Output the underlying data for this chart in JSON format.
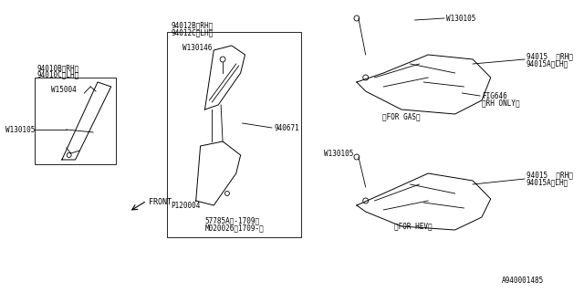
{
  "background_color": "#ffffff",
  "title": "",
  "fig_width": 6.4,
  "fig_height": 3.2,
  "dpi": 100,
  "part_number_bottom": "A940001485",
  "labels": {
    "part_94010B_RH": "94010B〈RH〉",
    "part_94010C_LH": "94010C〈LH〉",
    "part_W15004": "W15004",
    "part_W130105_left": "W130105",
    "part_94012B_RH": "94012B〈RH〉",
    "part_94012C_LH": "94012C〈LH〉",
    "part_W130146": "W130146",
    "part_940671": "940671",
    "part_P120004": "P120004",
    "part_57785A_1": "57785A（-1709）",
    "part_57785A_2": "M020026（1709-）",
    "part_W130105_top": "W130105",
    "part_94015_RH_top": "94015  〈RH〉",
    "part_94015A_LH_top": "94015A〈LH〉",
    "part_FIG646": "FIG646",
    "part_RH_ONLY": "〈RH ONLY〉",
    "label_FOR_GAS": "〈FOR GAS〉",
    "part_94015_RH_bot": "94015  〈RH〉",
    "part_94015A_LH_bot": "94015A〈LH〉",
    "label_FOR_HEV": "〈FOR HEV〉",
    "label_FRONT": "FRONT"
  },
  "line_color": "#000000",
  "text_color": "#000000",
  "box_color": "#000000",
  "font_size_labels": 5.5,
  "font_size_bottom": 5.5
}
